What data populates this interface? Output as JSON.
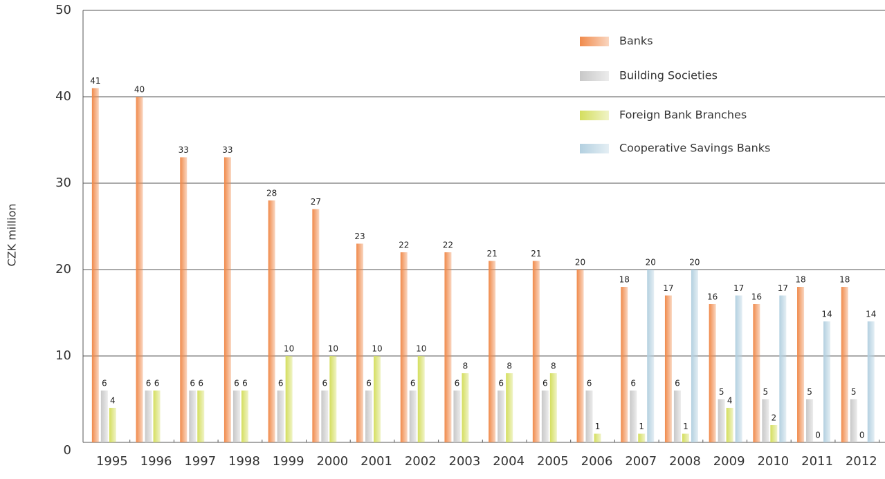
{
  "chart_data": {
    "type": "bar",
    "y_label": "CZK million",
    "categories": [
      "1995",
      "1996",
      "1997",
      "1998",
      "1999",
      "2000",
      "2001",
      "2002",
      "2003",
      "2004",
      "2005",
      "2006",
      "2007",
      "2008",
      "2009",
      "2010",
      "2011",
      "2012"
    ],
    "series": [
      {
        "name": "Banks",
        "color": "#f08a4b",
        "values": [
          41,
          40,
          33,
          33,
          28,
          27,
          23,
          22,
          22,
          21,
          21,
          20,
          18,
          17,
          16,
          16,
          18,
          18
        ]
      },
      {
        "name": "Building Societies",
        "color": "#c8c8c8",
        "values": [
          6,
          6,
          6,
          6,
          6,
          6,
          6,
          6,
          6,
          6,
          6,
          6,
          6,
          6,
          5,
          5,
          5,
          5
        ]
      },
      {
        "name": "Foreign Bank Branches",
        "color": "#d4de5e",
        "values": [
          4,
          6,
          6,
          6,
          10,
          10,
          10,
          10,
          8,
          8,
          8,
          1,
          1,
          1,
          4,
          2,
          0,
          0
        ]
      },
      {
        "name": "Cooperative Savings Banks",
        "color": "#b3d0e0",
        "values": [
          null,
          null,
          null,
          null,
          null,
          null,
          null,
          null,
          null,
          null,
          null,
          null,
          20,
          20,
          17,
          17,
          14,
          14
        ]
      }
    ],
    "ylim": [
      0,
      50
    ],
    "yticks": [
      0,
      10,
      20,
      30,
      40,
      50
    ],
    "grid": true,
    "legend": "upper right"
  }
}
